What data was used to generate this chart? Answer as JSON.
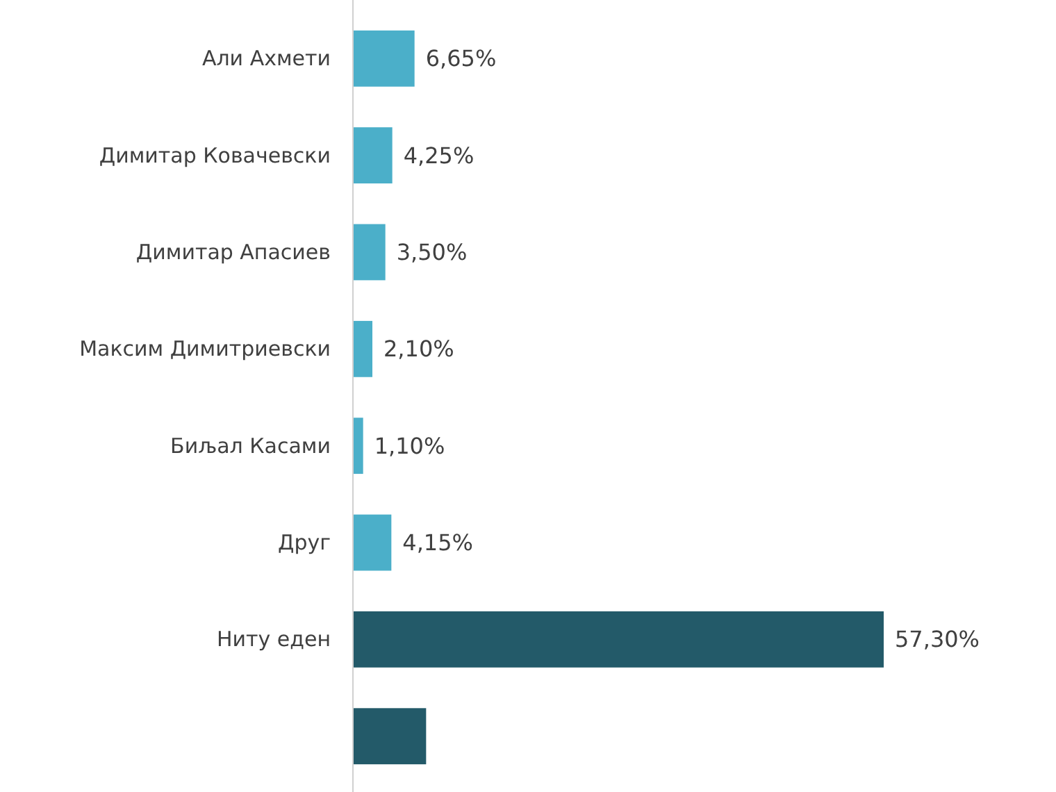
{
  "chart_data": {
    "type": "bar",
    "orientation": "horizontal",
    "categories": [
      "Али Ахмети",
      "Димитар Ковачевски",
      "Димитар Апасиев",
      "Максим Димитриевски",
      "Биљал Касами",
      "Друг",
      "Ниту еден",
      null
    ],
    "values": [
      6.65,
      4.25,
      3.5,
      2.1,
      1.1,
      4.15,
      57.3,
      7.9
    ],
    "colors": [
      "#4bafc9",
      "#4bafc9",
      "#4bafc9",
      "#4bafc9",
      "#4bafc9",
      "#4bafc9",
      "#235a69",
      "#235a69"
    ],
    "value_labels": [
      "6,65%",
      "4,25%",
      "3,50%",
      "2,10%",
      "1,10%",
      "4,15%",
      "57,30%",
      null
    ]
  }
}
